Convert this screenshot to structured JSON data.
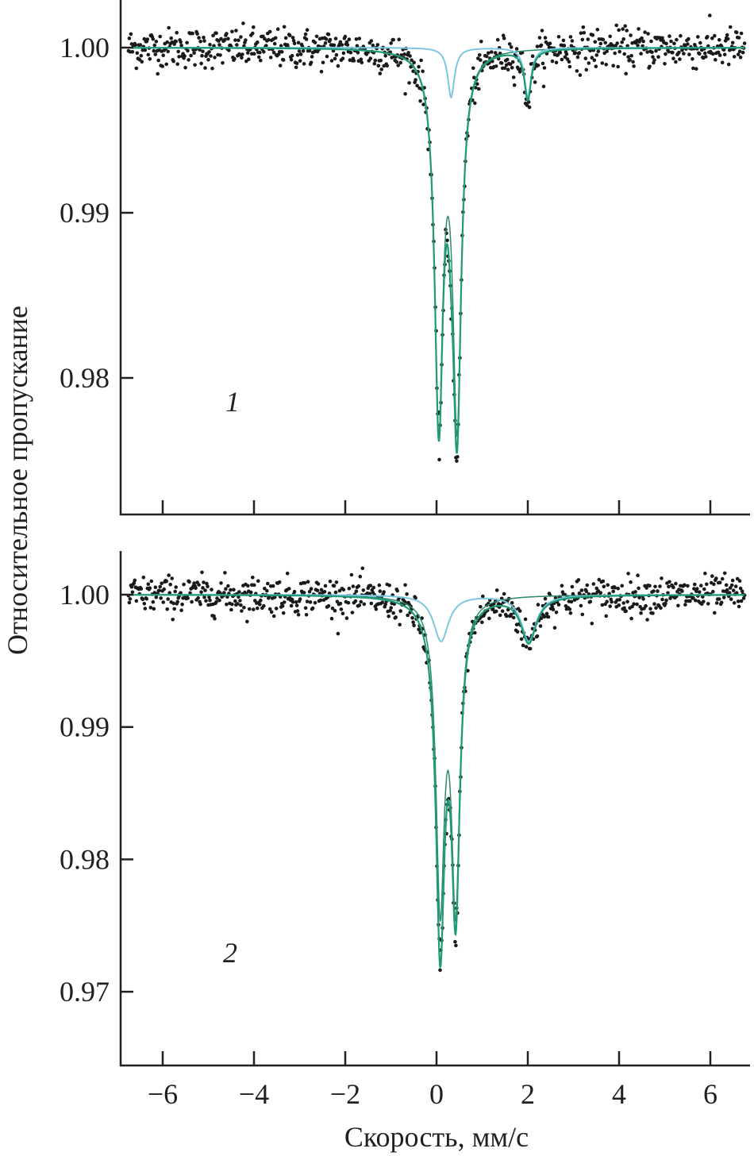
{
  "chart_data": [
    {
      "type": "scatter",
      "panel_label": "1",
      "xlabel": "Скорость, мм/с",
      "ylabel": "Относительное пропускание",
      "xlim": [
        -6.9,
        6.85
      ],
      "ylim": [
        0.9717,
        1.0029
      ],
      "x_ticks": [
        -6,
        -4,
        -2,
        0,
        2,
        4,
        6
      ],
      "y_ticks": [
        1.0,
        0.99,
        0.98
      ],
      "y_tick_labels": [
        "1.00",
        "0.99",
        "0.98"
      ],
      "data_points": {
        "x_range": [
          -6.75,
          6.75
        ],
        "count": 780,
        "noise_sd": 0.0006
      },
      "components": [
        {
          "name": "doublet",
          "color": "#2e8b6e",
          "lines": [
            {
              "x0": 0.05,
              "depth": 0.022,
              "hwhm": 0.11
            },
            {
              "x0": 0.45,
              "depth": 0.022,
              "hwhm": 0.11
            }
          ]
        },
        {
          "name": "subspectrum",
          "color": "#7cc8e0",
          "lines": [
            {
              "x0": 0.32,
              "depth": 0.003,
              "hwhm": 0.09
            },
            {
              "x0": 2.0,
              "depth": 0.003,
              "hwhm": 0.09
            }
          ]
        }
      ],
      "total_color": "#1f9a78"
    },
    {
      "type": "scatter",
      "panel_label": "2",
      "xlabel": "Скорость, мм/с",
      "ylabel": "Относительное пропускание",
      "xlim": [
        -6.9,
        6.85
      ],
      "ylim": [
        0.9644,
        1.0033
      ],
      "x_ticks": [
        -6,
        -4,
        -2,
        0,
        2,
        4,
        6
      ],
      "x_tick_labels": [
        "−6",
        "−4",
        "−2",
        "0",
        "2",
        "4",
        "6"
      ],
      "y_ticks": [
        1.0,
        0.99,
        0.98,
        0.97
      ],
      "y_tick_labels": [
        "1.00",
        "0.99",
        "0.98",
        "0.97"
      ],
      "data_points": {
        "x_range": [
          -6.75,
          6.75
        ],
        "count": 780,
        "noise_sd": 0.0007
      },
      "components": [
        {
          "name": "doublet",
          "color": "#2e8b6e",
          "lines": [
            {
              "x0": 0.08,
              "depth": 0.0225,
              "hwhm": 0.11
            },
            {
              "x0": 0.42,
              "depth": 0.0225,
              "hwhm": 0.11
            }
          ]
        },
        {
          "name": "subspectrum",
          "color": "#7cc8e0",
          "lines": [
            {
              "x0": 0.1,
              "depth": 0.0035,
              "hwhm": 0.2
            },
            {
              "x0": 2.02,
              "depth": 0.0035,
              "hwhm": 0.2
            }
          ]
        }
      ],
      "total_color": "#1f9a78"
    }
  ],
  "labels": {
    "ylabel": "Относительное пропускание",
    "xlabel": "Скорость, мм/с",
    "panel1": "1",
    "panel2": "2"
  }
}
